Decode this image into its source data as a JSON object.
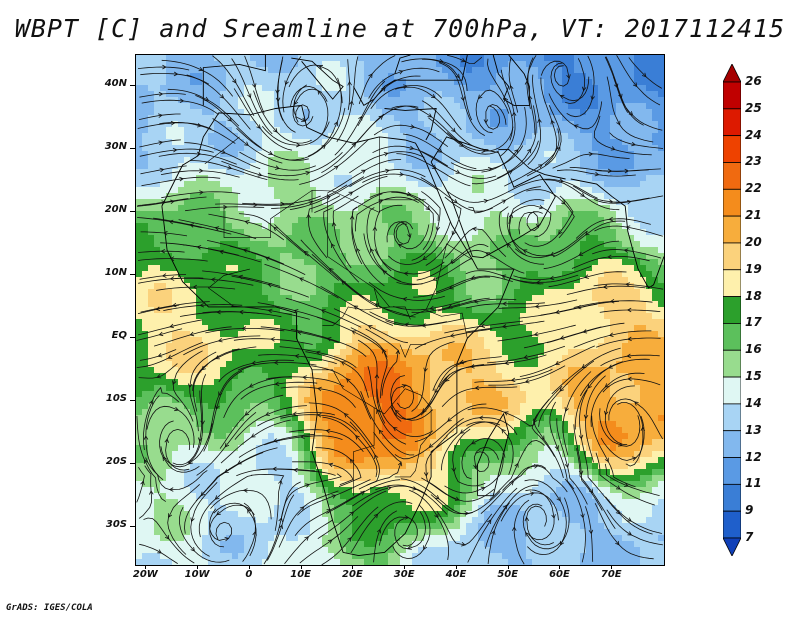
{
  "title": "WBPT [C] and Sreamline at 700hPa, VT: 2017112415",
  "credit": "GrADS: IGES/COLA",
  "map": {
    "lat_range": [
      -36,
      45
    ],
    "lon_range": [
      -22,
      80
    ],
    "lat_labels": [
      {
        "value": 40,
        "text": "40N"
      },
      {
        "value": 30,
        "text": "30N"
      },
      {
        "value": 20,
        "text": "20N"
      },
      {
        "value": 10,
        "text": "10N"
      },
      {
        "value": 0,
        "text": "EQ"
      },
      {
        "value": -10,
        "text": "10S"
      },
      {
        "value": -20,
        "text": "20S"
      },
      {
        "value": -30,
        "text": "30S"
      }
    ],
    "lon_labels": [
      {
        "value": -20,
        "text": "20W"
      },
      {
        "value": -10,
        "text": "10W"
      },
      {
        "value": 0,
        "text": "0"
      },
      {
        "value": 10,
        "text": "10E"
      },
      {
        "value": 20,
        "text": "20E"
      },
      {
        "value": 30,
        "text": "30E"
      },
      {
        "value": 40,
        "text": "40E"
      },
      {
        "value": 50,
        "text": "50E"
      },
      {
        "value": 60,
        "text": "60E"
      },
      {
        "value": 70,
        "text": "70E"
      }
    ]
  },
  "colorbar": {
    "labels": [
      "26",
      "25",
      "24",
      "23",
      "22",
      "21",
      "20",
      "19",
      "18",
      "17",
      "16",
      "15",
      "14",
      "13",
      "12",
      "11",
      "9",
      "7"
    ],
    "colors": [
      "#a50000",
      "#c00000",
      "#dd1a00",
      "#ee4200",
      "#f06a10",
      "#f48c1c",
      "#f7ad3c",
      "#fbd27c",
      "#fef0ac",
      "#2ca02c",
      "#5cc05c",
      "#98dc8e",
      "#dff7f3",
      "#a8d4f4",
      "#82b8ee",
      "#5a9ae4",
      "#3a7ed6",
      "#1f5fcb",
      "#1040b8"
    ]
  },
  "field": {
    "blobs": [
      {
        "lat": 40,
        "lon": -15,
        "r": 30,
        "v": 12.5
      },
      {
        "lat": 30,
        "lon": 5,
        "r": 32,
        "v": 13.5
      },
      {
        "lat": 38,
        "lon": 35,
        "r": 28,
        "v": 12.0
      },
      {
        "lat": 40,
        "lon": 58,
        "r": 26,
        "v": 10.0
      },
      {
        "lat": 42,
        "lon": 75,
        "r": 18,
        "v": 11.0
      },
      {
        "lat": 28,
        "lon": 70,
        "r": 18,
        "v": 13.0
      },
      {
        "lat": 22,
        "lon": 15,
        "r": 20,
        "v": 17.0
      },
      {
        "lat": 24,
        "lon": 50,
        "r": 18,
        "v": 17.2
      },
      {
        "lat": 15,
        "lon": -15,
        "r": 12,
        "v": 18.5
      },
      {
        "lat": 12,
        "lon": 5,
        "r": 14,
        "v": 17.5
      },
      {
        "lat": 10,
        "lon": 30,
        "r": 14,
        "v": 19.0
      },
      {
        "lat": 12,
        "lon": 65,
        "r": 14,
        "v": 20.5
      },
      {
        "lat": 5,
        "lon": -10,
        "r": 18,
        "v": 20.5
      },
      {
        "lat": 2,
        "lon": 55,
        "r": 10,
        "v": 17.0
      },
      {
        "lat": -3,
        "lon": 70,
        "r": 12,
        "v": 20.0
      },
      {
        "lat": -8,
        "lon": 25,
        "r": 14,
        "v": 22.5
      },
      {
        "lat": -15,
        "lon": 23,
        "r": 10,
        "v": 23.0
      },
      {
        "lat": -13,
        "lon": 70,
        "r": 9,
        "v": 22.0
      },
      {
        "lat": -8,
        "lon": 48,
        "r": 12,
        "v": 20.5
      },
      {
        "lat": -20,
        "lon": 35,
        "r": 10,
        "v": 19.0
      },
      {
        "lat": -22,
        "lon": -15,
        "r": 16,
        "v": 15.0
      },
      {
        "lat": -30,
        "lon": 0,
        "r": 18,
        "v": 13.5
      },
      {
        "lat": -32,
        "lon": 55,
        "r": 20,
        "v": 13.0
      },
      {
        "lat": -28,
        "lon": 20,
        "r": 10,
        "v": 16.5
      }
    ],
    "vortices": [
      {
        "lat": 35,
        "lon": 10,
        "sign": 1,
        "s": 10
      },
      {
        "lat": 34,
        "lon": 47,
        "sign": 1,
        "s": 8
      },
      {
        "lat": 42,
        "lon": 60,
        "sign": -1,
        "s": 9
      },
      {
        "lat": 18,
        "lon": 55,
        "sign": -1,
        "s": 7
      },
      {
        "lat": 16,
        "lon": 30,
        "sign": -1,
        "s": 8
      },
      {
        "lat": -18,
        "lon": -13,
        "sign": -1,
        "s": 8
      },
      {
        "lat": -31,
        "lon": -5,
        "sign": 1,
        "s": 9
      },
      {
        "lat": -30,
        "lon": 30,
        "sign": -1,
        "s": 8
      },
      {
        "lat": -28,
        "lon": 55,
        "sign": -1,
        "s": 10
      },
      {
        "lat": -12,
        "lon": 72,
        "sign": 1,
        "s": 6
      },
      {
        "lat": -20,
        "lon": 45,
        "sign": 1,
        "s": 5
      },
      {
        "lat": -10,
        "lon": 30,
        "sign": -1,
        "s": 6
      }
    ]
  }
}
